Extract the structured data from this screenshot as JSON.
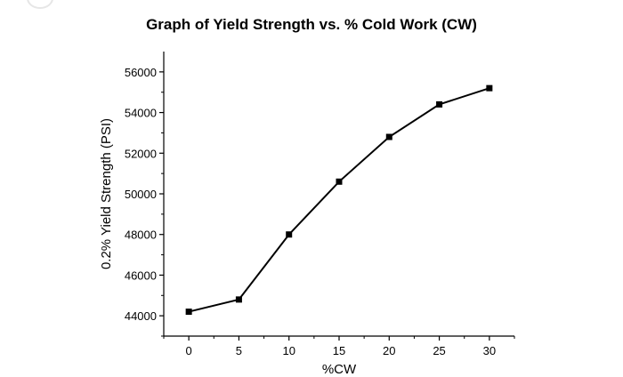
{
  "chart_data": {
    "type": "line",
    "title": "Graph of Yield Strength vs. % Cold Work (CW)",
    "xlabel": "%CW",
    "ylabel": "0.2% Yield Strength (PSI)",
    "x": [
      0,
      5,
      10,
      15,
      20,
      25,
      30
    ],
    "series": [
      {
        "values": [
          44200,
          44800,
          48000,
          50600,
          52800,
          54400,
          55200
        ]
      }
    ],
    "xlim": [
      -2.5,
      32.5
    ],
    "ylim": [
      43000,
      57000
    ],
    "xticks": [
      0,
      5,
      10,
      15,
      20,
      25,
      30
    ],
    "yticks": [
      44000,
      46000,
      48000,
      50000,
      52000,
      54000,
      56000
    ],
    "xtick_labels": [
      "0",
      "5",
      "10",
      "15",
      "20",
      "25",
      "30"
    ],
    "ytick_labels": [
      "44000",
      "46000",
      "48000",
      "50000",
      "52000",
      "54000",
      "56000"
    ],
    "grid": false,
    "marker": "square",
    "line_color": "#000000"
  }
}
